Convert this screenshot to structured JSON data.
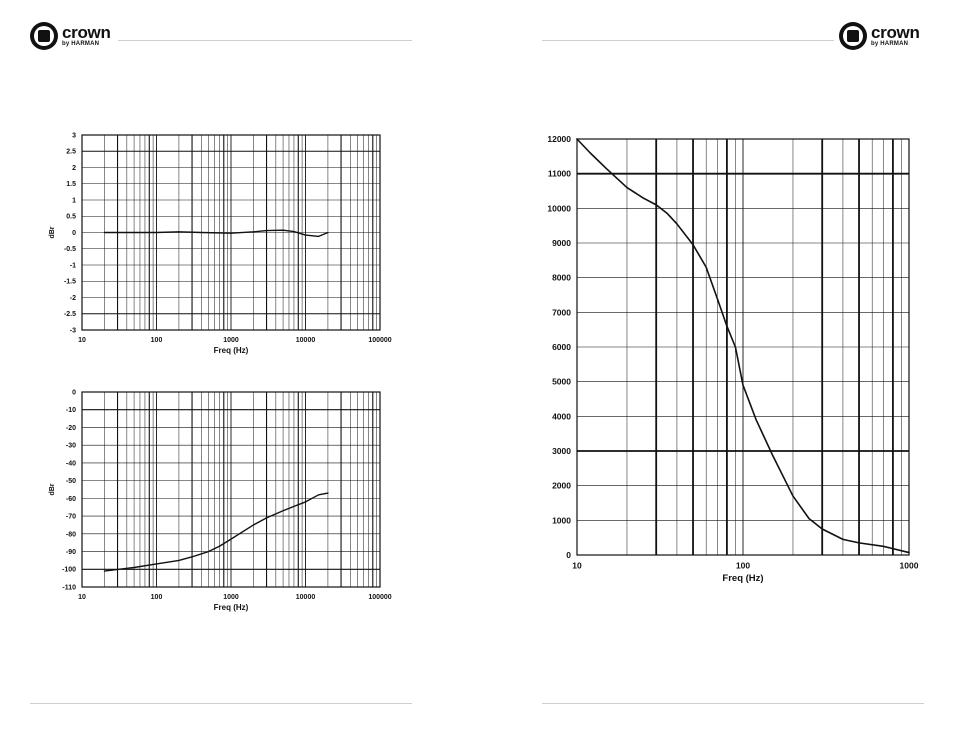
{
  "brand": {
    "name": "crown",
    "sub": "by HARMAN"
  },
  "chart_data": [
    {
      "type": "line",
      "xlabel": "Freq (Hz)",
      "ylabel": "dBr",
      "xscale": "log",
      "xlim": [
        10,
        100000
      ],
      "ylim": [
        -3,
        3
      ],
      "grid": true,
      "x_tick_labels": [
        "10",
        "100",
        "1000",
        "10000",
        "100000"
      ],
      "y_tick_labels": [
        "3",
        "2.5",
        "2",
        "1.5",
        "1",
        "0.5",
        "0",
        "-0.5",
        "-1",
        "-1.5",
        "-2",
        "-2.5",
        "-3"
      ],
      "series": [
        {
          "x": [
            20,
            40,
            100,
            200,
            400,
            1000,
            2000,
            3000,
            5000,
            7000,
            10000,
            15000,
            20000
          ],
          "y": [
            0.0,
            0.0,
            0.0,
            0.02,
            0.0,
            -0.02,
            0.02,
            0.06,
            0.07,
            0.03,
            -0.08,
            -0.12,
            0.0
          ]
        }
      ]
    },
    {
      "type": "line",
      "xlabel": "Freq (Hz)",
      "ylabel": "dBr",
      "xscale": "log",
      "xlim": [
        10,
        100000
      ],
      "ylim": [
        -110,
        0
      ],
      "grid": true,
      "x_tick_labels": [
        "10",
        "100",
        "1000",
        "10000",
        "100000"
      ],
      "y_tick_labels": [
        "0",
        "-10",
        "-20",
        "-30",
        "-40",
        "-50",
        "-60",
        "-70",
        "-80",
        "-90",
        "-100",
        "-110"
      ],
      "series": [
        {
          "x": [
            20,
            50,
            100,
            200,
            300,
            500,
            700,
            1000,
            2000,
            3000,
            5000,
            7000,
            10000,
            15000,
            20000
          ],
          "y": [
            -101,
            -99,
            -97,
            -95,
            -93,
            -90,
            -87,
            -83,
            -75,
            -71,
            -67,
            -64.5,
            -62,
            -58,
            -57
          ]
        }
      ]
    },
    {
      "type": "line",
      "xlabel": "Freq (Hz)",
      "ylabel": "",
      "xscale": "log",
      "xlim": [
        10,
        1000
      ],
      "ylim": [
        0,
        12000
      ],
      "grid": true,
      "x_tick_labels": [
        "10",
        "100",
        "1000"
      ],
      "y_tick_labels": [
        "12000",
        "11000",
        "10000",
        "9000",
        "8000",
        "7000",
        "6000",
        "5000",
        "4000",
        "3000",
        "2000",
        "1000",
        "0"
      ],
      "series": [
        {
          "x": [
            10,
            12,
            15,
            20,
            25,
            30,
            35,
            40,
            50,
            60,
            70,
            80,
            90,
            100,
            120,
            150,
            200,
            250,
            300,
            400,
            500,
            700,
            1000
          ],
          "y": [
            12000,
            11600,
            11150,
            10600,
            10300,
            10100,
            9850,
            9550,
            8950,
            8300,
            7400,
            6600,
            6000,
            4900,
            3900,
            2900,
            1700,
            1050,
            750,
            450,
            350,
            250,
            70
          ]
        }
      ]
    }
  ]
}
